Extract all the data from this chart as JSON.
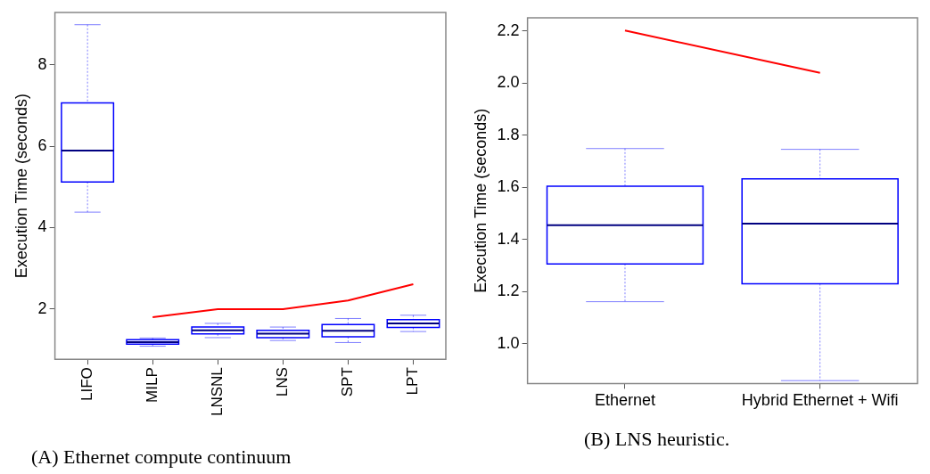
{
  "chart_data": [
    {
      "type": "box",
      "ylabel": "Execution Time (seconds)",
      "categories": [
        "LIFO",
        "MILP",
        "LNSNL",
        "LNS",
        "SPT",
        "LPT"
      ],
      "ylim": [
        0.77,
        9.28
      ],
      "yticks": [
        2,
        4,
        6,
        8
      ],
      "grid": false,
      "legend": false,
      "series": [
        {
          "color": "#0000ff",
          "boxes": [
            {
              "low": 4.38,
              "q1": 5.12,
              "median": 5.89,
              "q3": 7.06,
              "high": 8.98
            },
            {
              "low": 1.09,
              "q1": 1.14,
              "median": 1.19,
              "q3": 1.25,
              "high": 1.29
            },
            {
              "low": 1.3,
              "q1": 1.39,
              "median": 1.48,
              "q3": 1.56,
              "high": 1.65
            },
            {
              "low": 1.23,
              "q1": 1.3,
              "median": 1.4,
              "q3": 1.48,
              "high": 1.56
            },
            {
              "low": 1.18,
              "q1": 1.32,
              "median": 1.47,
              "q3": 1.62,
              "high": 1.77
            },
            {
              "low": 1.45,
              "q1": 1.55,
              "median": 1.65,
              "q3": 1.74,
              "high": 1.85
            }
          ]
        },
        {
          "type": "line",
          "color": "#ff0000",
          "values": [
            null,
            1.8,
            2.0,
            2.0,
            2.21,
            2.61
          ]
        }
      ],
      "annotations": [
        "(A) Ethernet compute continuum"
      ]
    },
    {
      "type": "box",
      "ylabel": "Execution Time (seconds)",
      "categories": [
        "Ethernet",
        "Hybrid Ethernet + Wifi"
      ],
      "ylim": [
        0.847,
        2.251
      ],
      "yticks": [
        {
          "value": 1.0,
          "label": "1.0"
        },
        1.2,
        1.4,
        1.6,
        1.8,
        {
          "value": 2.0,
          "label": "2.0"
        },
        2.2
      ],
      "grid": false,
      "legend": false,
      "series": [
        {
          "color": "#0000ff",
          "boxes": [
            {
              "low": 1.161,
              "q1": 1.306,
              "median": 1.455,
              "q3": 1.604,
              "high": 1.749
            },
            {
              "low": 0.858,
              "q1": 1.23,
              "median": 1.461,
              "q3": 1.633,
              "high": 1.746
            }
          ]
        },
        {
          "type": "line",
          "color": "#ff0000",
          "values": [
            2.202,
            2.04
          ]
        }
      ],
      "annotations": [
        "(B) LNS heuristic."
      ]
    }
  ]
}
